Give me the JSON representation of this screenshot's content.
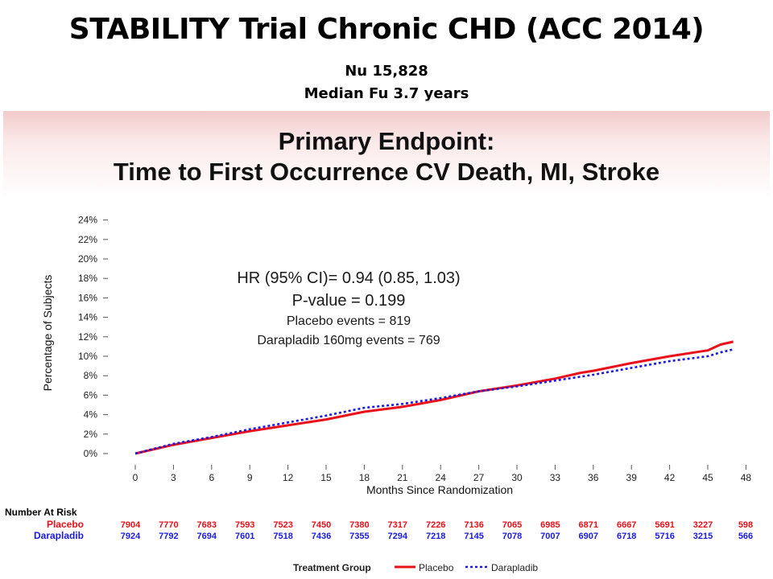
{
  "slide": {
    "title": "STABILITY Trial Chronic CHD (ACC 2014)",
    "subtitle1": "Nu 15,828",
    "subtitle2": "Median Fu 3.7 years"
  },
  "banner": {
    "line1": "Primary Endpoint:",
    "line2": "Time to First Occurrence CV Death, MI, Stroke"
  },
  "colors": {
    "placebo": "#e8101a",
    "darapladib": "#1a1ae0",
    "axis": "#555555"
  },
  "chart_data": {
    "type": "line",
    "xlabel": "Months Since Randomization",
    "ylabel": "Percentage of Subjects",
    "xlim": [
      0,
      48
    ],
    "ylim": [
      0,
      24
    ],
    "x_ticks": [
      0,
      3,
      6,
      9,
      12,
      15,
      18,
      21,
      24,
      27,
      30,
      33,
      36,
      39,
      42,
      45,
      48
    ],
    "y_ticks": [
      0,
      2,
      4,
      6,
      8,
      10,
      12,
      14,
      16,
      18,
      20,
      22,
      24
    ],
    "y_tick_suffix": "%",
    "annotations": [
      "HR (95% CI)= 0.94 (0.85, 1.03)",
      "P-value = 0.199",
      "Placebo events = 819",
      "Darapladib 160mg events = 769"
    ],
    "series": [
      {
        "name": "Placebo",
        "style": "solid",
        "x": [
          0,
          3,
          6,
          9,
          12,
          15,
          18,
          21,
          24,
          27,
          30,
          33,
          35,
          36,
          39,
          42,
          45,
          46,
          47
        ],
        "y": [
          0,
          0.9,
          1.6,
          2.3,
          2.9,
          3.5,
          4.3,
          4.8,
          5.5,
          6.4,
          7.0,
          7.7,
          8.3,
          8.5,
          9.3,
          10.0,
          10.6,
          11.2,
          11.5
        ]
      },
      {
        "name": "Darapladib",
        "style": "dotted",
        "x": [
          0,
          3,
          6,
          9,
          12,
          15,
          18,
          21,
          24,
          27,
          30,
          33,
          36,
          39,
          42,
          45,
          46,
          47
        ],
        "y": [
          0,
          1.0,
          1.7,
          2.5,
          3.2,
          3.9,
          4.7,
          5.1,
          5.7,
          6.4,
          6.9,
          7.5,
          8.1,
          8.8,
          9.5,
          10.0,
          10.4,
          10.7
        ]
      }
    ],
    "at_risk": {
      "header": "Number At Risk",
      "groups": [
        {
          "name": "Placebo",
          "values": [
            "7904",
            "7770",
            "7683",
            "7593",
            "7523",
            "7450",
            "7380",
            "7317",
            "7226",
            "7136",
            "7065",
            "6985",
            "6871",
            "6667",
            "5691",
            "3227",
            "598"
          ]
        },
        {
          "name": "Darapladib",
          "values": [
            "7924",
            "7792",
            "7694",
            "7601",
            "7518",
            "7436",
            "7355",
            "7294",
            "7218",
            "7145",
            "7078",
            "7007",
            "6907",
            "6718",
            "5716",
            "3215",
            "566"
          ]
        }
      ]
    },
    "legend": {
      "title": "Treatment Group",
      "position": "bottom",
      "items": [
        "Placebo",
        "Darapladib"
      ]
    }
  }
}
